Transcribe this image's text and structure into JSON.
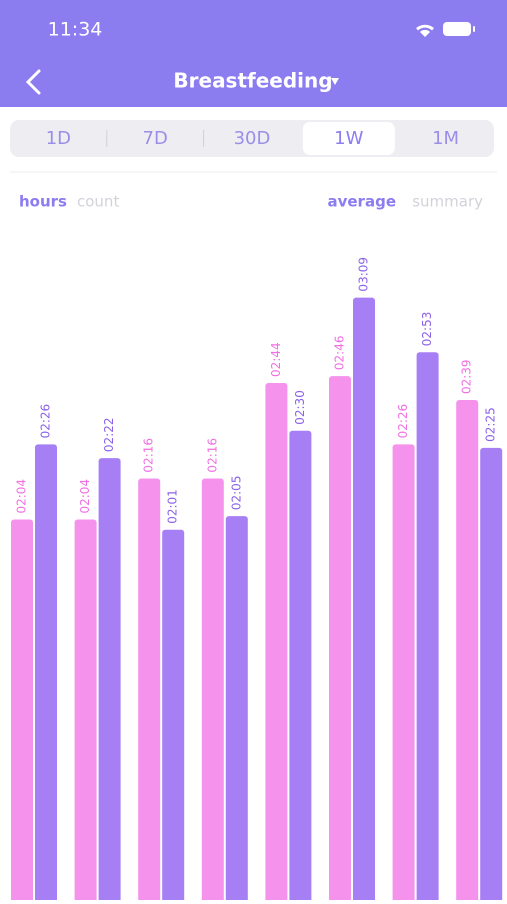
{
  "status_bar": {
    "time": "11:34"
  },
  "header": {
    "title": "Breastfeeding"
  },
  "tabs": {
    "items": [
      "1D",
      "7D",
      "30D",
      "1W",
      "1M"
    ],
    "selected": 3
  },
  "toggles": {
    "left": [
      "hours",
      "count"
    ],
    "right": [
      "average",
      "summary"
    ]
  },
  "chart_data": {
    "type": "bar",
    "series": [
      {
        "color": "#f492ec",
        "values": [
          124,
          124,
          136,
          136,
          164,
          166,
          146,
          159
        ],
        "value_labels": [
          "02:04",
          "02:04",
          "02:16",
          "02:16",
          "02:44",
          "02:46",
          "02:26",
          "02:39"
        ]
      },
      {
        "color": "#a77ff5",
        "values": [
          146,
          142,
          121,
          125,
          150,
          189,
          173,
          145
        ],
        "value_labels": [
          "02:26",
          "02:22",
          "02:01",
          "02:05",
          "02:30",
          "03:09",
          "02:53",
          "02:25"
        ]
      }
    ]
  }
}
